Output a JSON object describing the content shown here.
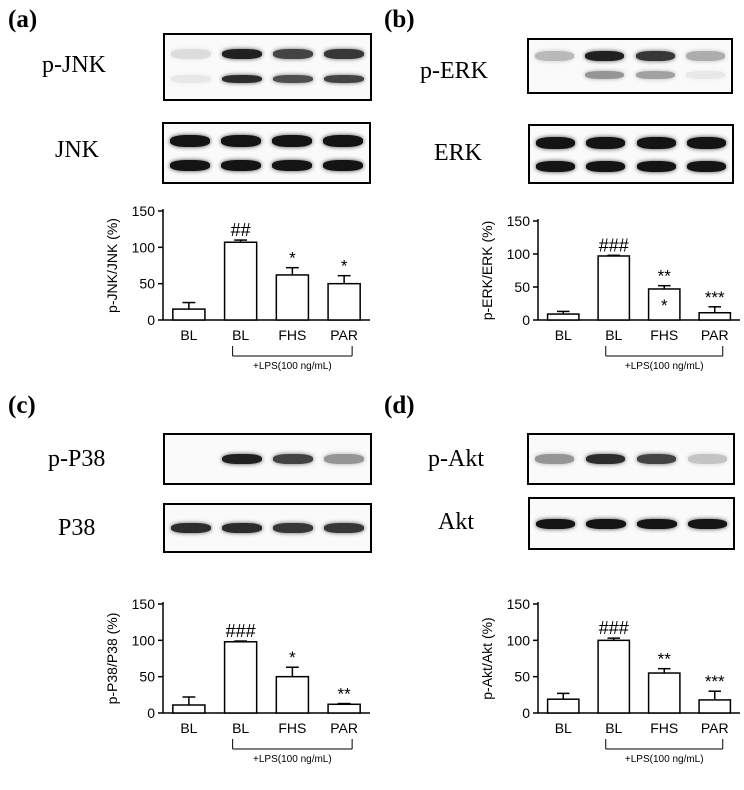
{
  "panels": [
    {
      "id": "a",
      "letter": "(a)",
      "top_blot_label": "p-JNK",
      "bottom_blot_label": "JNK",
      "top_bands": [
        0.15,
        0.95,
        0.8,
        0.85
      ],
      "top_bands2": [
        0.1,
        0.9,
        0.75,
        0.8
      ],
      "bottom_bands": [
        1,
        1,
        1,
        1
      ],
      "chart_data": {
        "type": "bar",
        "categories": [
          "BL",
          "BL",
          "FHS",
          "PAR"
        ],
        "values": [
          15,
          107,
          62,
          50
        ],
        "errors": [
          9,
          3,
          10,
          11
        ],
        "annotations": [
          "",
          "##",
          "*",
          "*"
        ],
        "ylabel": "p-JNK/JNK (%)",
        "ylim": [
          0,
          150
        ],
        "yticks": [
          0,
          50,
          100,
          150
        ],
        "bracket_label": "+LPS(100 ng/mL)"
      }
    },
    {
      "id": "b",
      "letter": "(b)",
      "top_blot_label": "p-ERK",
      "bottom_blot_label": "ERK",
      "top_bands": [
        0.3,
        0.95,
        0.85,
        0.35
      ],
      "top_bands2": [
        0.0,
        0.45,
        0.4,
        0.1
      ],
      "bottom_bands": [
        1,
        1,
        1,
        1
      ],
      "chart_data": {
        "type": "bar",
        "categories": [
          "BL",
          "BL",
          "FHS",
          "PAR"
        ],
        "values": [
          9,
          97,
          47,
          11
        ],
        "errors": [
          4,
          1,
          5,
          9
        ],
        "annotations": [
          "",
          "###",
          "**\n*",
          "***"
        ],
        "ylabel": "p-ERK/ERK (%)",
        "ylim": [
          0,
          150
        ],
        "yticks": [
          0,
          50,
          100,
          150
        ],
        "bracket_label": "+LPS(100 ng/mL)"
      }
    },
    {
      "id": "c",
      "letter": "(c)",
      "top_blot_label": "p-P38",
      "bottom_blot_label": "P38",
      "top_bands": [
        0.0,
        0.95,
        0.8,
        0.45
      ],
      "top_bands2": [
        0,
        0,
        0,
        0
      ],
      "bottom_bands": [
        0.9,
        0.9,
        0.85,
        0.85
      ],
      "chart_data": {
        "type": "bar",
        "categories": [
          "BL",
          "BL",
          "FHS",
          "PAR"
        ],
        "values": [
          11,
          98,
          50,
          12
        ],
        "errors": [
          11,
          1,
          13,
          1
        ],
        "annotations": [
          "",
          "###",
          "*",
          "**"
        ],
        "ylabel": "p-P38/P38 (%)",
        "ylim": [
          0,
          150
        ],
        "yticks": [
          0,
          50,
          100,
          150
        ],
        "bracket_label": "+LPS(100 ng/mL)"
      }
    },
    {
      "id": "d",
      "letter": "(d)",
      "top_blot_label": "p-Akt",
      "bottom_blot_label": "Akt",
      "top_bands": [
        0.45,
        0.9,
        0.8,
        0.25
      ],
      "top_bands2": [
        0,
        0,
        0,
        0
      ],
      "bottom_bands": [
        1,
        1,
        1,
        1
      ],
      "chart_data": {
        "type": "bar",
        "categories": [
          "BL",
          "BL",
          "FHS",
          "PAR"
        ],
        "values": [
          19,
          100,
          55,
          18
        ],
        "errors": [
          8,
          3,
          6,
          12
        ],
        "annotations": [
          "",
          "###",
          "**",
          "***"
        ],
        "ylabel": "p-Akt/Akt (%)",
        "ylim": [
          0,
          150
        ],
        "yticks": [
          0,
          50,
          100,
          150
        ],
        "bracket_label": "+LPS(100 ng/mL)"
      }
    }
  ]
}
